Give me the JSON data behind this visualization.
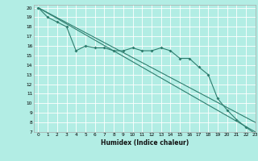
{
  "title": "",
  "xlabel": "Humidex (Indice chaleur)",
  "background_color": "#b2ede4",
  "grid_color": "#ffffff",
  "line_color": "#2e7d6e",
  "xlim": [
    -0.5,
    23
  ],
  "ylim": [
    7,
    20.3
  ],
  "xticks": [
    0,
    1,
    2,
    3,
    4,
    5,
    6,
    7,
    8,
    9,
    10,
    11,
    12,
    13,
    14,
    15,
    16,
    17,
    18,
    19,
    20,
    21,
    22,
    23
  ],
  "yticks": [
    7,
    8,
    9,
    10,
    11,
    12,
    13,
    14,
    15,
    16,
    17,
    18,
    19,
    20
  ],
  "line1_x": [
    0,
    1,
    2,
    3,
    4,
    5,
    6,
    7,
    8,
    9,
    10,
    11,
    12,
    13,
    14,
    15,
    16,
    17,
    18,
    19,
    20,
    21,
    22,
    23
  ],
  "line1_y": [
    20,
    19,
    18.5,
    18,
    15.5,
    16,
    15.8,
    15.8,
    15.5,
    15.5,
    15.8,
    15.5,
    15.5,
    15.8,
    15.5,
    14.7,
    14.7,
    13.8,
    13,
    10.5,
    9.3,
    8.3,
    7.5,
    6.8
  ],
  "line2_x": [
    0,
    23
  ],
  "line2_y": [
    20,
    8.0
  ],
  "line3_x": [
    0,
    23
  ],
  "line3_y": [
    20,
    7.0
  ]
}
